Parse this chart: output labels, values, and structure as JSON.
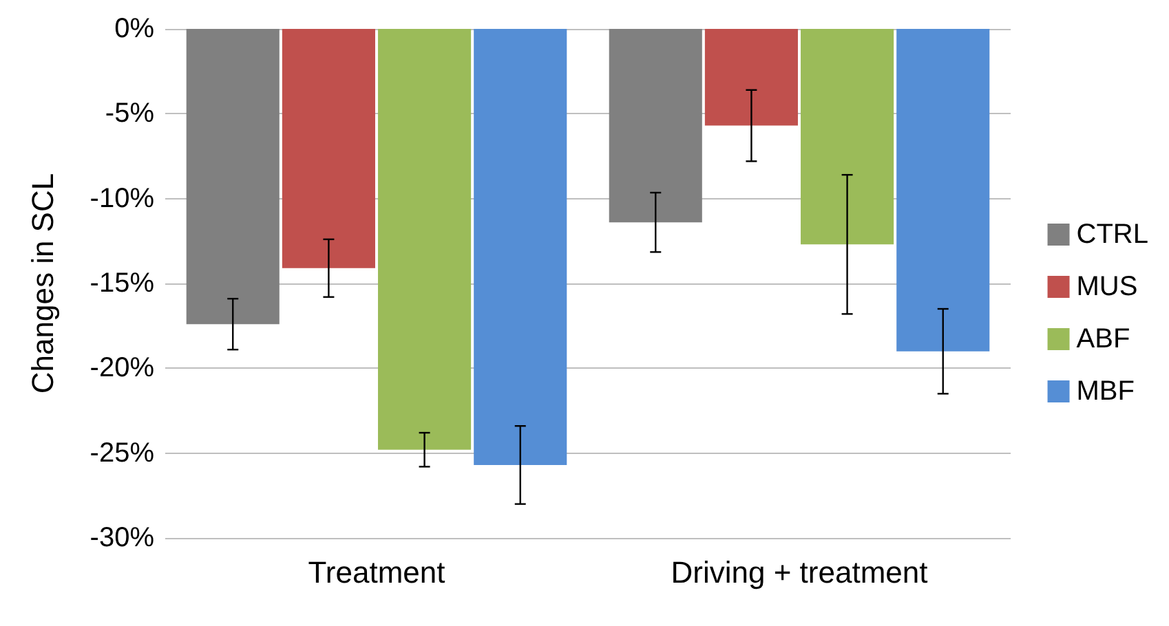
{
  "chart_data": {
    "type": "bar",
    "ylabel": "Changes in SCL",
    "categories": [
      "Treatment",
      "Driving + treatment"
    ],
    "series": [
      {
        "name": "CTRL",
        "color": "#808080",
        "values": [
          -17.4,
          -11.4
        ],
        "errors": [
          1.5,
          1.75
        ]
      },
      {
        "name": "MUS",
        "color": "#c0504d",
        "values": [
          -14.1,
          -5.7
        ],
        "errors": [
          1.7,
          2.1
        ]
      },
      {
        "name": "ABF",
        "color": "#9bbb59",
        "values": [
          -24.8,
          -12.7
        ],
        "errors": [
          1.0,
          4.1
        ]
      },
      {
        "name": "MBF",
        "color": "#558ed5",
        "values": [
          -25.7,
          -19.0
        ],
        "errors": [
          2.3,
          2.5
        ]
      }
    ],
    "ylim": [
      -30,
      0
    ],
    "yticks": [
      {
        "value": -30,
        "label": "-30%"
      },
      {
        "value": -25,
        "label": "-25%"
      },
      {
        "value": -20,
        "label": "-20%"
      },
      {
        "value": -15,
        "label": "-15%"
      },
      {
        "value": -10,
        "label": "-10%"
      },
      {
        "value": -5,
        "label": "-5%"
      },
      {
        "value": 0,
        "label": "0%"
      }
    ],
    "grid": "y",
    "legend": "right"
  }
}
